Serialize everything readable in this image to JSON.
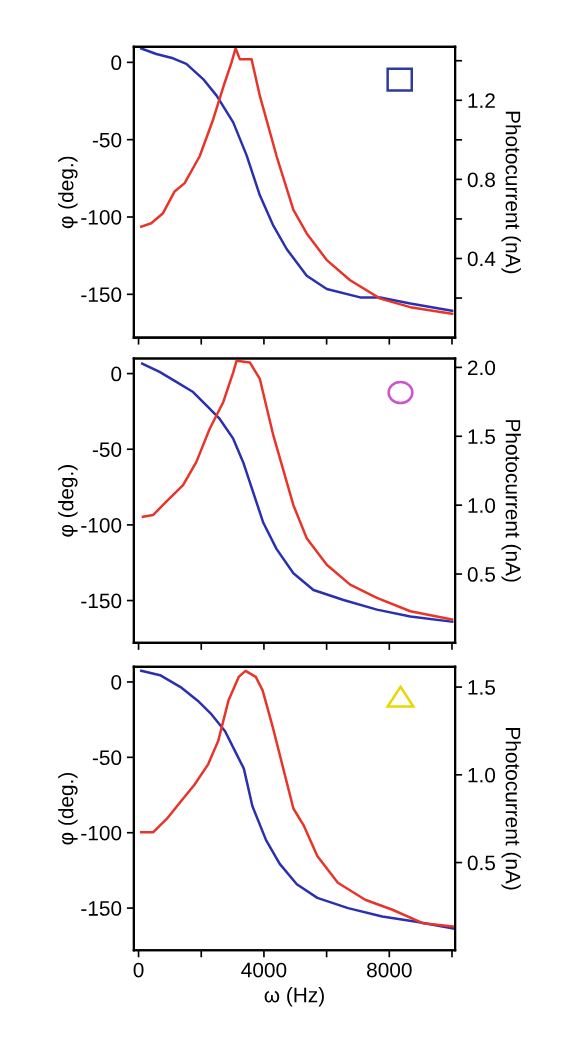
{
  "chart_data": [
    {
      "type": "line",
      "ylabel": "φ (deg.)",
      "y2label": "Photocurrent (nA)",
      "xlim": [
        -150,
        10100
      ],
      "xticks": [
        0,
        {
          "value": 2000,
          "label": null
        },
        4000,
        {
          "value": 6000,
          "label": null
        },
        8000,
        {
          "value": 10000,
          "label": null
        }
      ],
      "ylim": [
        -178,
        10
      ],
      "yticks": [
        -150,
        -100,
        -50,
        0
      ],
      "y2lim": [
        0,
        1.47
      ],
      "y2ticks": [
        {
          "value": 0.2,
          "label": null
        },
        0.4,
        {
          "value": 0.6,
          "label": null
        },
        0.8,
        {
          "value": 1.0,
          "label": null
        },
        1.2,
        {
          "value": 1.4,
          "label": null
        }
      ],
      "tick_labels": "y",
      "grid": false,
      "legend": false,
      "line_style": "solid",
      "marker": "none",
      "series": [
        {
          "color": "#2b30b0",
          "x": [
            85,
            565,
            1100,
            1525,
            2060,
            2490,
            3020,
            3445,
            3870,
            4300,
            4725,
            5365,
            6005,
            7070,
            7710,
            8670,
            10005
          ],
          "values": [
            9,
            5.4,
            2.6,
            -1,
            -10.8,
            -21.5,
            -38.8,
            -60,
            -86,
            -105.6,
            -120.7,
            -138,
            -146.6,
            -152,
            -152,
            -156,
            -160.6
          ]
        },
        {
          "color": "#e8352a",
          "axis": "y2",
          "x": [
            85,
            405,
            780,
            1150,
            1470,
            1950,
            2380,
            2750,
            2965,
            3095,
            3230,
            3605,
            3870,
            4405,
            4940,
            5365,
            6005,
            6750,
            7710,
            8670,
            10005
          ],
          "values": [
            0.561,
            0.578,
            0.629,
            0.739,
            0.781,
            0.917,
            1.103,
            1.29,
            1.39,
            1.463,
            1.408,
            1.408,
            1.222,
            0.917,
            0.646,
            0.527,
            0.392,
            0.29,
            0.197,
            0.154,
            0.12
          ]
        }
      ]
    },
    {
      "type": "line",
      "ylabel": "φ (deg.)",
      "y2label": "Photocurrent (nA)",
      "xlim": [
        -150,
        10100
      ],
      "xticks": [
        0,
        {
          "value": 2000,
          "label": null
        },
        4000,
        {
          "value": 6000,
          "label": null
        },
        8000,
        {
          "value": 10000,
          "label": null
        }
      ],
      "ylim": [
        -178,
        10
      ],
      "yticks": [
        -150,
        -100,
        -50,
        0
      ],
      "y2lim": [
        0,
        2.065
      ],
      "y2ticks": [
        0.5,
        {
          "value": 1,
          "label": "1.0"
        },
        1.5,
        {
          "value": 2,
          "label": "2.0"
        }
      ],
      "tick_labels": "y",
      "grid": false,
      "legend": false,
      "line_style": "solid",
      "marker": "none",
      "series": [
        {
          "color": "#2b30b0",
          "x": [
            117,
            670,
            1205,
            1740,
            2165,
            2590,
            3020,
            3340,
            3660,
            3980,
            4405,
            4940,
            5580,
            6540,
            7605,
            8670,
            10005
          ],
          "values": [
            6.6,
            1.1,
            -5.5,
            -12.2,
            -21,
            -30,
            -43,
            -58.7,
            -78.7,
            -98.6,
            -116,
            -132,
            -143,
            -149.6,
            -156,
            -160.6,
            -164
          ]
        },
        {
          "color": "#e8352a",
          "axis": "y2",
          "x": [
            140,
            460,
            885,
            1420,
            1845,
            2270,
            2700,
            3020,
            3125,
            3550,
            3870,
            4300,
            4940,
            5365,
            6005,
            6750,
            7605,
            8670,
            10005
          ],
          "values": [
            0.916,
            0.928,
            1.025,
            1.145,
            1.314,
            1.555,
            1.747,
            1.964,
            2.048,
            2.036,
            1.916,
            1.506,
            1.0,
            0.76,
            0.567,
            0.423,
            0.327,
            0.23,
            0.17
          ]
        }
      ]
    },
    {
      "type": "line",
      "xlabel": "ω (Hz)",
      "ylabel": "φ (deg.)",
      "y2label": "Photocurrent (nA)",
      "xlim": [
        -150,
        10100
      ],
      "xticks": [
        0,
        {
          "value": 2000,
          "label": null
        },
        4000,
        {
          "value": 6000,
          "label": null
        },
        8000,
        {
          "value": 10000,
          "label": null
        }
      ],
      "ylim": [
        -178,
        10
      ],
      "yticks": [
        -150,
        -100,
        -50,
        0
      ],
      "y2lim": [
        0,
        1.615
      ],
      "y2ticks": [
        0.5,
        {
          "value": 1,
          "label": "1.0"
        },
        1.5
      ],
      "grid": false,
      "legend": false,
      "line_style": "solid",
      "marker": "none",
      "series": [
        {
          "color": "#2b30b0",
          "x": [
            87,
            687,
            1340,
            1887,
            2323,
            2760,
            3086,
            3359,
            3631,
            4068,
            4504,
            5049,
            5703,
            6685,
            7775,
            8866,
            10050
          ],
          "values": [
            7.4,
            4.5,
            -3.4,
            -12.4,
            -21.4,
            -32.7,
            -46.2,
            -57.5,
            -82.3,
            -104.9,
            -120.7,
            -134.2,
            -143.2,
            -150,
            -155.6,
            -159,
            -163.5
          ]
        },
        {
          "color": "#e8352a",
          "axis": "y2",
          "x": [
            87,
            470,
            905,
            1340,
            1777,
            2214,
            2540,
            2868,
            3195,
            3413,
            3740,
            3958,
            4286,
            4613,
            4940,
            5267,
            5703,
            6358,
            7230,
            8100,
            9084,
            10065
          ],
          "values": [
            0.673,
            0.673,
            0.75,
            0.846,
            0.942,
            1.058,
            1.192,
            1.423,
            1.558,
            1.592,
            1.558,
            1.481,
            1.269,
            1.038,
            0.808,
            0.712,
            0.538,
            0.385,
            0.288,
            0.231,
            0.154,
            0.135
          ]
        }
      ]
    }
  ]
}
